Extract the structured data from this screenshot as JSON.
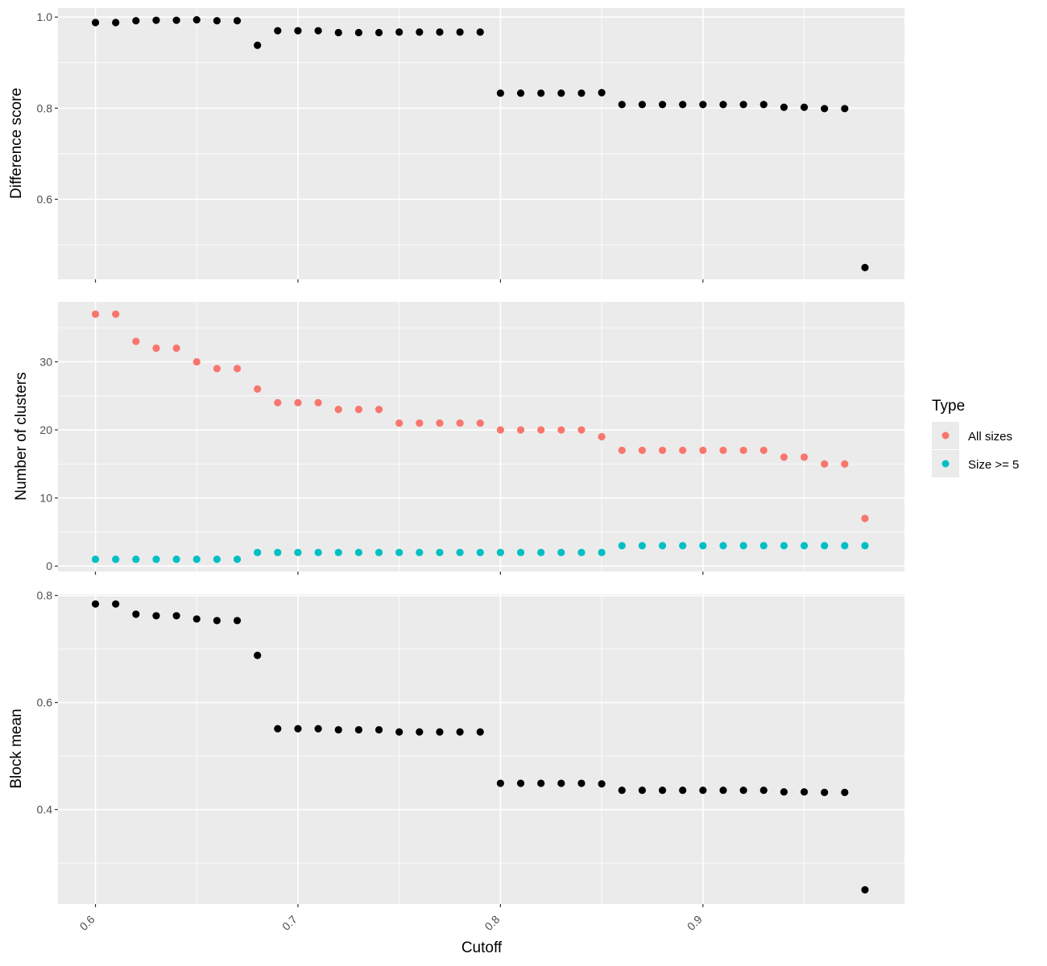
{
  "chart_data": [
    {
      "type": "scatter",
      "ylabel": "Difference score",
      "xlabel": "",
      "xlim": [
        0.5815,
        0.9995
      ],
      "ylim": [
        0.4242,
        1.0198
      ],
      "yticks": [
        "0.6",
        "0.8",
        "1.0"
      ],
      "grid": true,
      "series": [
        {
          "color": "#000000",
          "x": [
            0.6,
            0.61,
            0.62,
            0.63,
            0.64,
            0.65,
            0.66,
            0.67,
            0.68,
            0.69,
            0.7,
            0.71,
            0.72,
            0.73,
            0.74,
            0.75,
            0.76,
            0.77,
            0.78,
            0.79,
            0.8,
            0.81,
            0.82,
            0.83,
            0.84,
            0.85,
            0.86,
            0.87,
            0.88,
            0.89,
            0.9,
            0.91,
            0.92,
            0.93,
            0.94,
            0.95,
            0.96,
            0.97,
            0.98
          ],
          "y": [
            0.988,
            0.988,
            0.992,
            0.993,
            0.993,
            0.994,
            0.992,
            0.992,
            0.938,
            0.97,
            0.97,
            0.97,
            0.966,
            0.966,
            0.966,
            0.967,
            0.967,
            0.967,
            0.967,
            0.967,
            0.833,
            0.833,
            0.833,
            0.833,
            0.833,
            0.834,
            0.808,
            0.808,
            0.808,
            0.808,
            0.808,
            0.808,
            0.808,
            0.808,
            0.802,
            0.802,
            0.799,
            0.799,
            0.45
          ]
        }
      ]
    },
    {
      "type": "scatter",
      "ylabel": "Number of clusters",
      "xlabel": "",
      "xlim": [
        0.5815,
        0.9995
      ],
      "ylim": [
        -0.8,
        38.8
      ],
      "yticks": [
        "0",
        "10",
        "20",
        "30"
      ],
      "grid": true,
      "legend": {
        "title": "Type",
        "position": "right"
      },
      "series": [
        {
          "name": "All sizes",
          "color": "#f8766d",
          "x": [
            0.6,
            0.61,
            0.62,
            0.63,
            0.64,
            0.65,
            0.66,
            0.67,
            0.68,
            0.69,
            0.7,
            0.71,
            0.72,
            0.73,
            0.74,
            0.75,
            0.76,
            0.77,
            0.78,
            0.79,
            0.8,
            0.81,
            0.82,
            0.83,
            0.84,
            0.85,
            0.86,
            0.87,
            0.88,
            0.89,
            0.9,
            0.91,
            0.92,
            0.93,
            0.94,
            0.95,
            0.96,
            0.97,
            0.98
          ],
          "y": [
            37,
            37,
            33,
            32,
            32,
            30,
            29,
            29,
            26,
            24,
            24,
            24,
            23,
            23,
            23,
            21,
            21,
            21,
            21,
            21,
            20,
            20,
            20,
            20,
            20,
            19,
            17,
            17,
            17,
            17,
            17,
            17,
            17,
            17,
            16,
            16,
            15,
            15,
            7
          ]
        },
        {
          "name": "Size >= 5",
          "color": "#00bfc4",
          "x": [
            0.6,
            0.61,
            0.62,
            0.63,
            0.64,
            0.65,
            0.66,
            0.67,
            0.68,
            0.69,
            0.7,
            0.71,
            0.72,
            0.73,
            0.74,
            0.75,
            0.76,
            0.77,
            0.78,
            0.79,
            0.8,
            0.81,
            0.82,
            0.83,
            0.84,
            0.85,
            0.86,
            0.87,
            0.88,
            0.89,
            0.9,
            0.91,
            0.92,
            0.93,
            0.94,
            0.95,
            0.96,
            0.97,
            0.98
          ],
          "y": [
            1,
            1,
            1,
            1,
            1,
            1,
            1,
            1,
            2,
            2,
            2,
            2,
            2,
            2,
            2,
            2,
            2,
            2,
            2,
            2,
            2,
            2,
            2,
            2,
            2,
            2,
            3,
            3,
            3,
            3,
            3,
            3,
            3,
            3,
            3,
            3,
            3,
            3,
            3
          ]
        }
      ]
    },
    {
      "type": "scatter",
      "ylabel": "Block mean",
      "xlabel": "Cutoff",
      "xlim": [
        0.5815,
        0.9995
      ],
      "ylim": [
        0.2235,
        0.8025
      ],
      "yticks": [
        "0.4",
        "0.6",
        "0.8"
      ],
      "xticks": [
        "0.6",
        "0.7",
        "0.8",
        "0.9"
      ],
      "grid": true,
      "series": [
        {
          "color": "#000000",
          "x": [
            0.6,
            0.61,
            0.62,
            0.63,
            0.64,
            0.65,
            0.66,
            0.67,
            0.68,
            0.69,
            0.7,
            0.71,
            0.72,
            0.73,
            0.74,
            0.75,
            0.76,
            0.77,
            0.78,
            0.79,
            0.8,
            0.81,
            0.82,
            0.83,
            0.84,
            0.85,
            0.86,
            0.87,
            0.88,
            0.89,
            0.9,
            0.91,
            0.92,
            0.93,
            0.94,
            0.95,
            0.96,
            0.97,
            0.98
          ],
          "y": [
            0.784,
            0.784,
            0.765,
            0.762,
            0.762,
            0.756,
            0.753,
            0.753,
            0.688,
            0.551,
            0.551,
            0.551,
            0.549,
            0.549,
            0.549,
            0.545,
            0.545,
            0.545,
            0.545,
            0.545,
            0.449,
            0.449,
            0.449,
            0.449,
            0.449,
            0.448,
            0.436,
            0.436,
            0.436,
            0.436,
            0.436,
            0.436,
            0.436,
            0.436,
            0.433,
            0.433,
            0.432,
            0.432,
            0.25
          ]
        }
      ]
    }
  ]
}
